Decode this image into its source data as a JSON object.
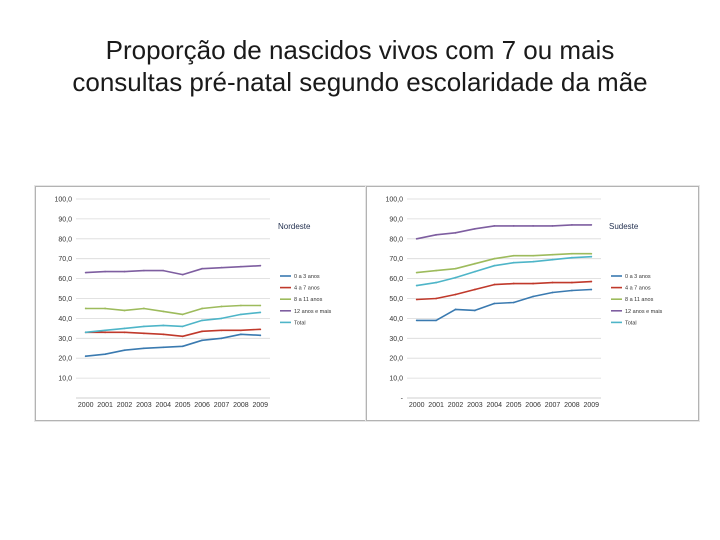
{
  "title": {
    "line1": "Proporção de nascidos vivos com 7 ou mais",
    "line2": "consultas pré-natal segundo  escolaridade da mãe"
  },
  "chart_data": [
    {
      "type": "line",
      "title": "Nordeste",
      "categories": [
        "2000",
        "2001",
        "2002",
        "2003",
        "2004",
        "2005",
        "2006",
        "2007",
        "2008",
        "2009"
      ],
      "yticks": [
        "100,0",
        "90,0",
        "80,0",
        "70,0",
        "60,0",
        "50,0",
        "40,0",
        "30,0",
        "20,0",
        "10,0"
      ],
      "ylim": [
        0,
        100
      ],
      "series": [
        {
          "name": "0 a 3 anos",
          "color": "#3a7ab0",
          "values": [
            21,
            22,
            24,
            25,
            25.5,
            26,
            29,
            30,
            32,
            31.5
          ]
        },
        {
          "name": "4 a 7 anos",
          "color": "#c0392b",
          "values": [
            33,
            33,
            33,
            32.5,
            32,
            31,
            33.5,
            34,
            34,
            34.5
          ]
        },
        {
          "name": "8 a 11 anos",
          "color": "#9dbb5c",
          "values": [
            45,
            45,
            44,
            45,
            43.5,
            42,
            45,
            46,
            46.5,
            46.5
          ]
        },
        {
          "name": "12 anos e mais",
          "color": "#7e5ea0",
          "values": [
            63,
            63.5,
            63.5,
            64,
            64,
            62,
            65,
            65.5,
            66,
            66.5
          ]
        },
        {
          "name": "Total",
          "color": "#4eb5c8",
          "values": [
            33,
            34,
            35,
            36,
            36.5,
            36,
            39,
            40,
            42,
            43
          ]
        }
      ]
    },
    {
      "type": "line",
      "title": "Sudeste",
      "categories": [
        "2000",
        "2001",
        "2002",
        "2003",
        "2004",
        "2005",
        "2006",
        "2007",
        "2008",
        "2009"
      ],
      "yticks": [
        "100,0",
        "90,0",
        "80,0",
        "70,0",
        "60,0",
        "50,0",
        "40,0",
        "30,0",
        "20,0",
        "10,0",
        "-"
      ],
      "ylim": [
        0,
        100
      ],
      "series": [
        {
          "name": "0 a 3 anos",
          "color": "#3a7ab0",
          "values": [
            39,
            39,
            44.5,
            44,
            47.5,
            48,
            51,
            53,
            54,
            54.5
          ]
        },
        {
          "name": "4 a 7 anos",
          "color": "#c0392b",
          "values": [
            49.5,
            50,
            52,
            54.5,
            57,
            57.5,
            57.5,
            58,
            58,
            58.5
          ]
        },
        {
          "name": "8 a 11 anos",
          "color": "#9dbb5c",
          "values": [
            63,
            64,
            65,
            67.5,
            70,
            71.5,
            71.5,
            72,
            72.5,
            72.5
          ]
        },
        {
          "name": "12 anos e mais",
          "color": "#7e5ea0",
          "values": [
            80,
            82,
            83,
            85,
            86.5,
            86.5,
            86.5,
            86.5,
            87,
            87
          ]
        },
        {
          "name": "Total",
          "color": "#4eb5c8",
          "values": [
            56.5,
            58,
            60.5,
            63.5,
            66.5,
            68,
            68.5,
            69.5,
            70.5,
            71
          ]
        }
      ]
    }
  ]
}
